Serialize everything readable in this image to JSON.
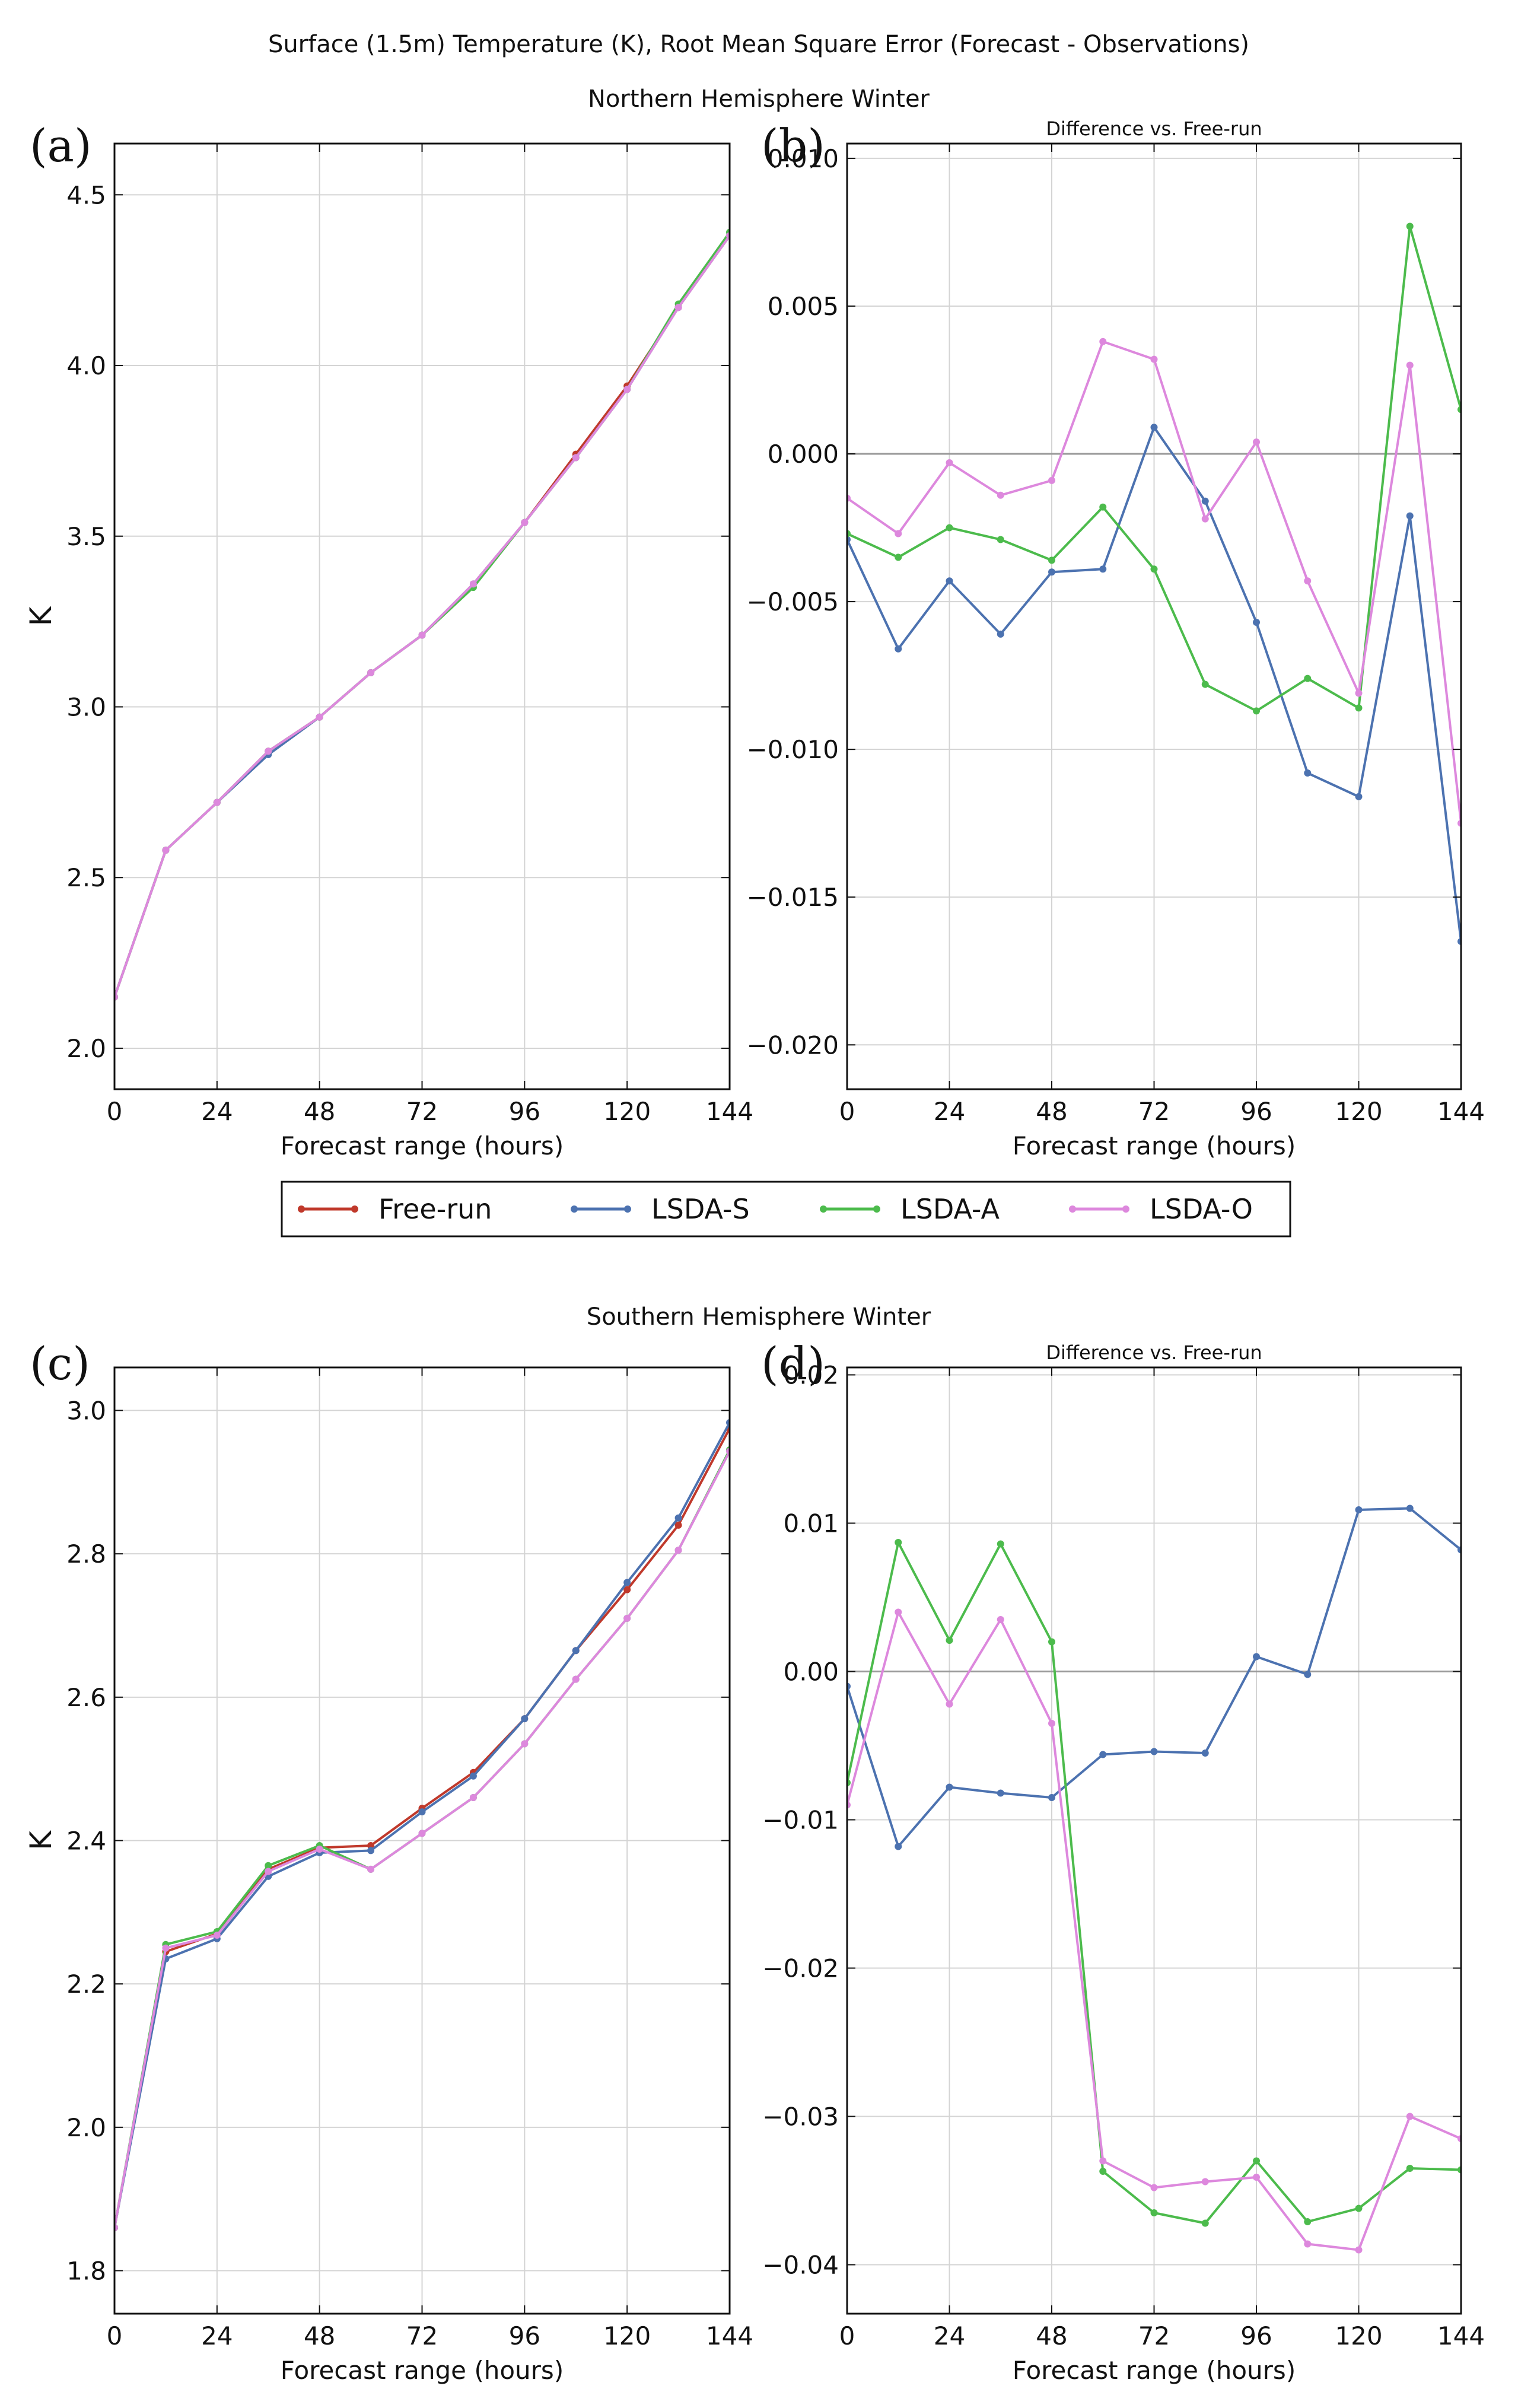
{
  "figure": {
    "title": "Surface (1.5m) Temperature (K), Root Mean Square Error (Forecast - Observations)",
    "row_titles": [
      "Northern Hemisphere Winter",
      "Southern Hemisphere Winter"
    ],
    "legend": {
      "entries": [
        "Free-run",
        "LSDA-S",
        "LSDA-A",
        "LSDA-O"
      ]
    },
    "colors": {
      "Free-run": "#c0392b",
      "LSDA-S": "#4c72b0",
      "LSDA-A": "#4cbb4c",
      "LSDA-O": "#dd88dd",
      "grid": "#d4d4d4",
      "zero_line": "#999999"
    }
  },
  "chart_data": [
    {
      "panel": "(a)",
      "type": "line",
      "title": "",
      "xlabel": "Forecast range (hours)",
      "ylabel": "K",
      "x": [
        0,
        12,
        24,
        36,
        48,
        60,
        72,
        84,
        96,
        108,
        120,
        132,
        144
      ],
      "xticks": [
        0,
        24,
        48,
        72,
        96,
        120,
        144
      ],
      "xlim": [
        0,
        144
      ],
      "ylim": [
        1.88,
        4.65
      ],
      "yticks": [
        2.0,
        2.5,
        3.0,
        3.5,
        4.0,
        4.5
      ],
      "yticklabels": [
        "2.0",
        "2.5",
        "3.0",
        "3.5",
        "4.0",
        "4.5"
      ],
      "zero_line": false,
      "series": [
        {
          "name": "Free-run",
          "values": [
            2.15,
            2.58,
            2.72,
            2.87,
            2.97,
            3.1,
            3.21,
            3.36,
            3.54,
            3.74,
            3.94,
            4.17,
            4.38
          ]
        },
        {
          "name": "LSDA-S",
          "values": [
            2.15,
            2.58,
            2.72,
            2.86,
            2.97,
            3.1,
            3.21,
            3.36,
            3.54,
            3.73,
            3.93,
            4.17,
            4.38
          ]
        },
        {
          "name": "LSDA-A",
          "values": [
            2.15,
            2.58,
            2.72,
            2.87,
            2.97,
            3.1,
            3.21,
            3.35,
            3.54,
            3.73,
            3.93,
            4.18,
            4.39
          ]
        },
        {
          "name": "LSDA-O",
          "values": [
            2.15,
            2.58,
            2.72,
            2.87,
            2.97,
            3.1,
            3.21,
            3.36,
            3.54,
            3.73,
            3.93,
            4.17,
            4.38
          ]
        }
      ]
    },
    {
      "panel": "(b)",
      "type": "line",
      "title": "Difference vs. Free-run",
      "xlabel": "Forecast range (hours)",
      "ylabel": "",
      "x": [
        0,
        12,
        24,
        36,
        48,
        60,
        72,
        84,
        96,
        108,
        120,
        132,
        144
      ],
      "xticks": [
        0,
        24,
        48,
        72,
        96,
        120,
        144
      ],
      "xlim": [
        0,
        144
      ],
      "ylim": [
        -0.0215,
        0.0105
      ],
      "yticks": [
        -0.02,
        -0.015,
        -0.01,
        -0.005,
        0.0,
        0.005,
        0.01
      ],
      "yticklabels": [
        "−0.020",
        "−0.015",
        "−0.010",
        "−0.005",
        "0.000",
        "0.005",
        "0.010"
      ],
      "zero_line": true,
      "series": [
        {
          "name": "LSDA-S",
          "values": [
            -0.0029,
            -0.0066,
            -0.0043,
            -0.0061,
            -0.004,
            -0.0039,
            0.0009,
            -0.0016,
            -0.0057,
            -0.0108,
            -0.0116,
            -0.0021,
            -0.0165
          ]
        },
        {
          "name": "LSDA-A",
          "values": [
            -0.0027,
            -0.0035,
            -0.0025,
            -0.0029,
            -0.0036,
            -0.0018,
            -0.0039,
            -0.0078,
            -0.0087,
            -0.0076,
            -0.0086,
            0.0077,
            0.0015
          ]
        },
        {
          "name": "LSDA-O",
          "values": [
            -0.0015,
            -0.0027,
            -0.0003,
            -0.0014,
            -0.0009,
            0.0038,
            0.0032,
            -0.0022,
            0.0004,
            -0.0043,
            -0.0081,
            0.003,
            -0.0125
          ]
        }
      ]
    },
    {
      "panel": "(c)",
      "type": "line",
      "title": "",
      "xlabel": "Forecast range (hours)",
      "ylabel": "K",
      "x": [
        0,
        12,
        24,
        36,
        48,
        60,
        72,
        84,
        96,
        108,
        120,
        132,
        144
      ],
      "xticks": [
        0,
        24,
        48,
        72,
        96,
        120,
        144
      ],
      "xlim": [
        0,
        144
      ],
      "ylim": [
        1.74,
        3.06
      ],
      "yticks": [
        1.8,
        2.0,
        2.2,
        2.4,
        2.6,
        2.8,
        3.0
      ],
      "yticklabels": [
        "1.8",
        "2.0",
        "2.2",
        "2.4",
        "2.6",
        "2.8",
        "3.0"
      ],
      "zero_line": false,
      "series": [
        {
          "name": "Free-run",
          "values": [
            1.86,
            2.245,
            2.27,
            2.36,
            2.39,
            2.393,
            2.445,
            2.495,
            2.57,
            2.665,
            2.75,
            2.84,
            2.975
          ]
        },
        {
          "name": "LSDA-S",
          "values": [
            1.86,
            2.235,
            2.263,
            2.35,
            2.383,
            2.386,
            2.44,
            2.49,
            2.57,
            2.665,
            2.76,
            2.85,
            2.983
          ]
        },
        {
          "name": "LSDA-A",
          "values": [
            1.86,
            2.255,
            2.273,
            2.365,
            2.393,
            2.36,
            2.41,
            2.46,
            2.535,
            2.625,
            2.71,
            2.805,
            2.945
          ]
        },
        {
          "name": "LSDA-O",
          "values": [
            1.86,
            2.25,
            2.268,
            2.357,
            2.388,
            2.36,
            2.41,
            2.46,
            2.535,
            2.625,
            2.71,
            2.805,
            2.943
          ]
        }
      ]
    },
    {
      "panel": "(d)",
      "type": "line",
      "title": "Difference vs. Free-run",
      "xlabel": "Forecast range (hours)",
      "ylabel": "",
      "x": [
        0,
        12,
        24,
        36,
        48,
        60,
        72,
        84,
        96,
        108,
        120,
        132,
        144
      ],
      "xticks": [
        0,
        24,
        48,
        72,
        96,
        120,
        144
      ],
      "xlim": [
        0,
        144
      ],
      "ylim": [
        -0.0433,
        0.0205
      ],
      "yticks": [
        -0.04,
        -0.03,
        -0.02,
        -0.01,
        0.0,
        0.01,
        0.02
      ],
      "yticklabels": [
        "−0.04",
        "−0.03",
        "−0.02",
        "−0.01",
        "0.00",
        "0.01",
        "0.02"
      ],
      "zero_line": true,
      "series": [
        {
          "name": "LSDA-S",
          "values": [
            -0.001,
            -0.0118,
            -0.0078,
            -0.0082,
            -0.0085,
            -0.0056,
            -0.0054,
            -0.0055,
            0.001,
            -0.0002,
            0.0109,
            0.011,
            0.0082
          ]
        },
        {
          "name": "LSDA-A",
          "values": [
            -0.0075,
            0.0087,
            0.0021,
            0.0086,
            0.002,
            -0.0337,
            -0.0365,
            -0.0372,
            -0.033,
            -0.0371,
            -0.0362,
            -0.0335,
            -0.0336
          ]
        },
        {
          "name": "LSDA-O",
          "values": [
            -0.009,
            0.004,
            -0.0022,
            0.0035,
            -0.0035,
            -0.033,
            -0.0348,
            -0.0344,
            -0.0341,
            -0.0386,
            -0.039,
            -0.03,
            -0.0315
          ]
        }
      ]
    }
  ]
}
